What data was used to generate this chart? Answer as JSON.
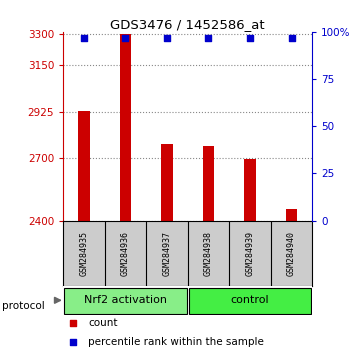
{
  "title": "GDS3476 / 1452586_at",
  "samples": [
    "GSM284935",
    "GSM284936",
    "GSM284937",
    "GSM284938",
    "GSM284939",
    "GSM284940"
  ],
  "counts": [
    2930,
    3298,
    2770,
    2760,
    2698,
    2455
  ],
  "percentile_ranks": [
    97,
    97,
    97,
    97,
    97,
    97
  ],
  "ylim_left": [
    2400,
    3310
  ],
  "yticks_left": [
    2400,
    2700,
    2925,
    3150,
    3300
  ],
  "ylim_right": [
    0,
    100
  ],
  "yticks_right": [
    0,
    25,
    50,
    75,
    100
  ],
  "bar_color": "#cc0000",
  "dot_color": "#0000cc",
  "groups": [
    {
      "label": "Nrf2 activation",
      "color": "#88ee88"
    },
    {
      "label": "control",
      "color": "#44ee44"
    }
  ],
  "group_ranges": [
    [
      0,
      2
    ],
    [
      3,
      5
    ]
  ],
  "protocol_label": "protocol",
  "legend_items": [
    {
      "color": "#cc0000",
      "label": "count"
    },
    {
      "color": "#0000cc",
      "label": "percentile rank within the sample"
    }
  ],
  "background_color": "#ffffff",
  "grid_color": "#888888",
  "sample_box_color": "#cccccc"
}
